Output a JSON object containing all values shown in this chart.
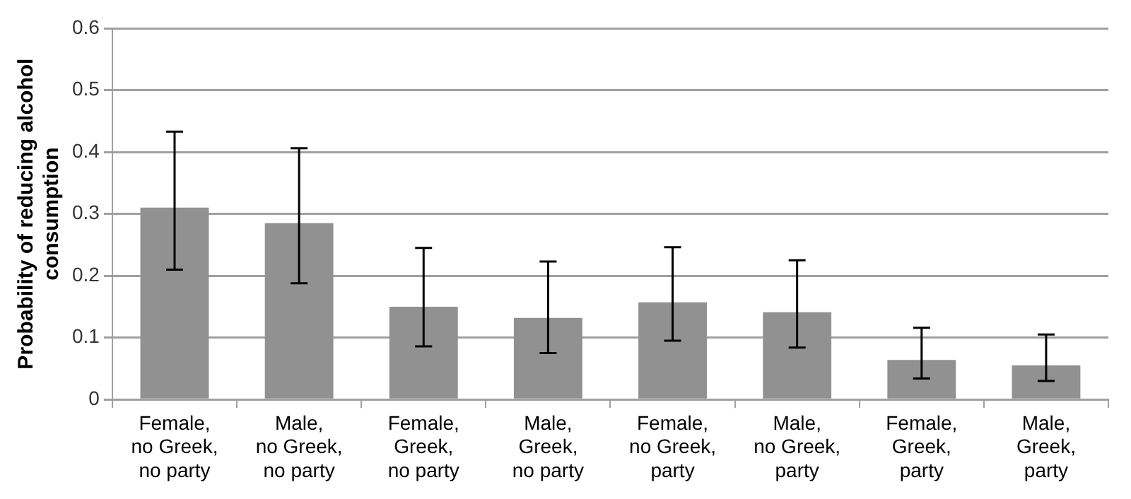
{
  "chart_data": {
    "type": "bar",
    "ylabel": "Probability of reducing alcohol consumption",
    "categories": [
      "Female,\nno Greek,\nno party",
      "Male,\nno Greek,\nno party",
      "Female,\nGreek,\nno party",
      "Male,\nGreek,\nno party",
      "Female,\nno Greek,\nparty",
      "Male,\nno Greek,\nparty",
      "Female,\nGreek,\nparty",
      "Male,\nGreek,\nparty"
    ],
    "values": [
      0.31,
      0.285,
      0.15,
      0.132,
      0.157,
      0.141,
      0.064,
      0.055
    ],
    "errors": [
      [
        0.21,
        0.433
      ],
      [
        0.188,
        0.406
      ],
      [
        0.086,
        0.245
      ],
      [
        0.075,
        0.223
      ],
      [
        0.095,
        0.246
      ],
      [
        0.084,
        0.225
      ],
      [
        0.034,
        0.116
      ],
      [
        0.03,
        0.105
      ]
    ],
    "color": "#919191",
    "ylim": [
      0,
      0.6
    ],
    "yticks": [
      0,
      0.1,
      0.2,
      0.3,
      0.4,
      0.5,
      0.6
    ],
    "grid": "y"
  }
}
